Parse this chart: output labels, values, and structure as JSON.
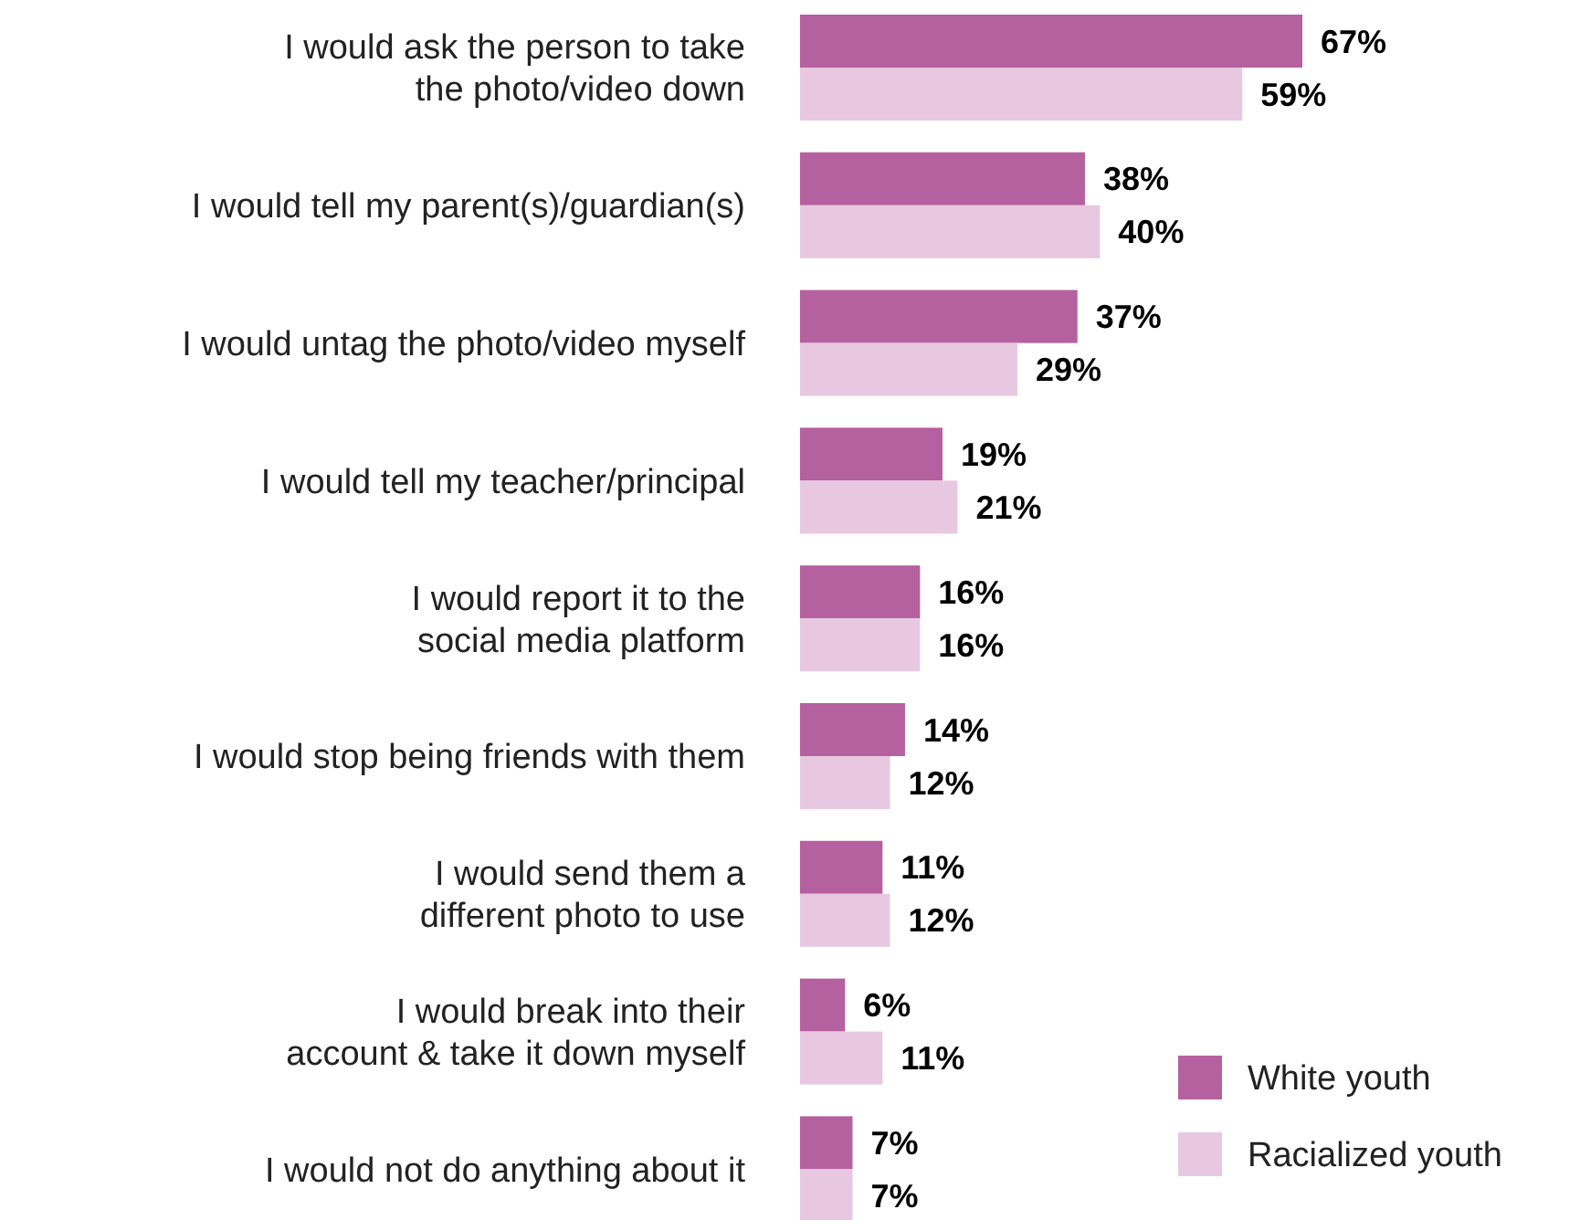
{
  "chart_data": {
    "type": "bar",
    "orientation": "horizontal",
    "legend": "bottom right",
    "categories": [
      "I would ask the person to take\nthe photo/video down",
      "I would tell my parent(s)/guardian(s)",
      "I would untag the photo/video myself",
      "I would tell my teacher/principal",
      "I would report it to the\nsocial media platform",
      "I would stop being friends with them",
      "I would send them a\ndifferent photo to use",
      "I would break into their\naccount & take it down myself",
      "I would not do anything about it"
    ],
    "series": [
      {
        "name": "White youth",
        "color": "#b5609f",
        "values": [
          67,
          38,
          37,
          19,
          16,
          14,
          11,
          6,
          7
        ],
        "value_labels": [
          "67%",
          "38%",
          "37%",
          "19%",
          "16%",
          "14%",
          "11%",
          "6%",
          "7%"
        ]
      },
      {
        "name": "Racialized youth",
        "color": "#e8c8e0",
        "values": [
          59,
          40,
          29,
          21,
          16,
          12,
          12,
          11,
          7
        ],
        "value_labels": [
          "59%",
          "40%",
          "29%",
          "21%",
          "16%",
          "12%",
          "12%",
          "11%",
          "7%"
        ]
      }
    ]
  }
}
